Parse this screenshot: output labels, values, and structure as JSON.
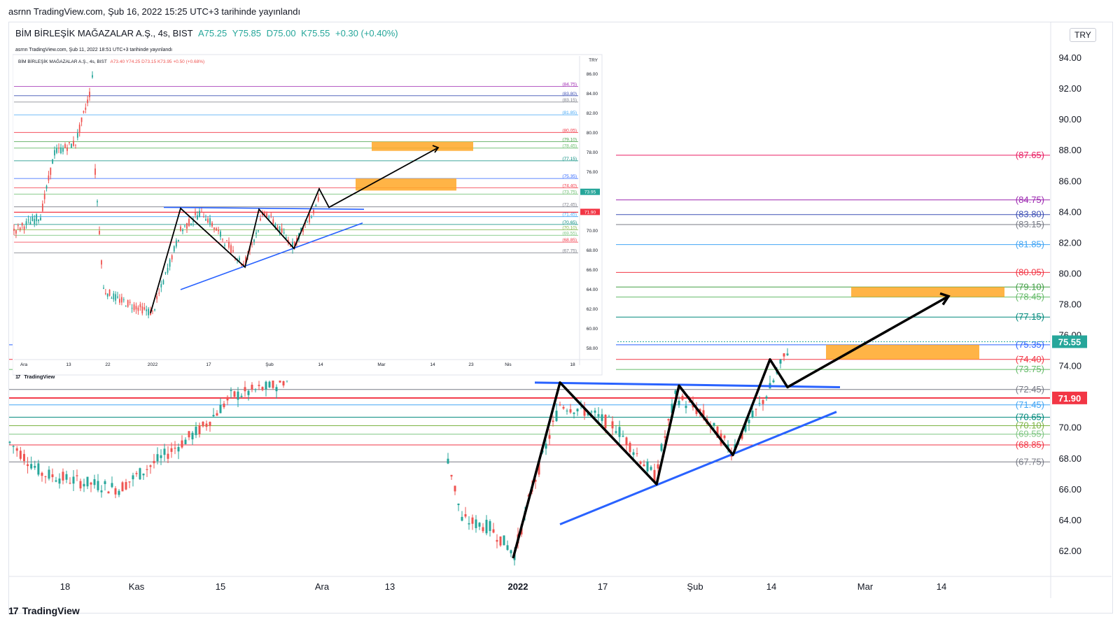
{
  "published": "asrnn TradingView.com, Şub 16, 2022 15:25 UTC+3 tarihinde yayınlandı",
  "legend": {
    "symbol": "BİM BİRLEŞİK MAĞAZALAR A.Ş., 4s, BIST",
    "open": "A75.25",
    "high": "Y75.85",
    "low": "D75.00",
    "close": "K75.55",
    "change": "+0.30 (+0.40%)"
  },
  "currency": "TRY",
  "footer_logo": "TradingView",
  "colors": {
    "up": "#26a69a",
    "down": "#ef5350",
    "trend": "#2962ff",
    "zone": "#ffa726",
    "pattern": "#000000"
  },
  "chart_data": [
    {
      "type": "candlestick",
      "name": "main",
      "x_ticks": [
        "18",
        "Kas",
        "15",
        "Ara",
        "13",
        "2022",
        "17",
        "Şub",
        "14",
        "Mar",
        "14"
      ],
      "y_ticks": [
        62,
        64,
        66,
        68,
        70,
        72,
        74,
        76,
        78,
        80,
        82,
        84,
        86,
        88,
        90,
        92,
        94
      ],
      "ylim": [
        60.5,
        95
      ],
      "y_tick_labels": [
        "62.00",
        "64.00",
        "66.00",
        "68.00",
        "70.00",
        "72.00",
        "74.00",
        "76.00",
        "78.00",
        "80.00",
        "82.00",
        "84.00",
        "86.00",
        "88.00",
        "90.00",
        "92.00",
        "94.00"
      ],
      "last_price": 75.55,
      "last_price_label": "75.55",
      "marker_price": 71.9,
      "marker_price_label": "71.90",
      "levels": [
        {
          "value": 87.65,
          "label": "(87.65)",
          "color": "#e91e63"
        },
        {
          "value": 84.75,
          "label": "(84.75)",
          "color": "#9c27b0"
        },
        {
          "value": 83.8,
          "label": "(83.80)",
          "color": "#3f51b5"
        },
        {
          "value": 83.15,
          "label": "(83.15)",
          "color": "#787b86"
        },
        {
          "value": 81.85,
          "label": "(81.85)",
          "color": "#42a5f5"
        },
        {
          "value": 80.05,
          "label": "(80.05)",
          "color": "#f23645"
        },
        {
          "value": 79.1,
          "label": "(79.10)",
          "color": "#43a047"
        },
        {
          "value": 78.45,
          "label": "(78.45)",
          "color": "#66bb6a"
        },
        {
          "value": 77.15,
          "label": "(77.15)",
          "color": "#00897b"
        },
        {
          "value": 75.35,
          "label": "(75.35)",
          "color": "#2962ff"
        },
        {
          "value": 74.4,
          "label": "(74.40)",
          "color": "#f23645"
        },
        {
          "value": 73.75,
          "label": "(73.75)",
          "color": "#66bb6a"
        },
        {
          "value": 72.45,
          "label": "(72.45)",
          "color": "#787b86"
        },
        {
          "value": 71.45,
          "label": "(71.45)",
          "color": "#42a5f5"
        },
        {
          "value": 70.65,
          "label": "(70.65)",
          "color": "#00897b"
        },
        {
          "value": 70.1,
          "label": "(70.10)",
          "color": "#7cb342"
        },
        {
          "value": 69.55,
          "label": "(69.55)",
          "color": "#81c784"
        },
        {
          "value": 68.85,
          "label": "(68.85)",
          "color": "#f23645"
        },
        {
          "value": 67.75,
          "label": "(67.75)",
          "color": "#787b86"
        }
      ],
      "zones": [
        [
          78.45,
          79.1
        ],
        [
          74.4,
          75.35
        ]
      ],
      "path": [
        61.5,
        72.9,
        66.3,
        72.7,
        68.2,
        74.4,
        72.6,
        78.5
      ],
      "upper_trend": [
        72.9,
        72.6
      ],
      "lower_trend": [
        63.7,
        71.0
      ]
    },
    {
      "type": "candlestick",
      "name": "inset",
      "published": "asrnn TradingView.com, Şub 11, 2022 18:51 UTC+3 tarihinde yayınlandı",
      "legend_symbol": "BİM BİRLEŞİK MAĞAZALAR A.Ş., 4s, BIST",
      "legend_values": "A73.40  Y74.25  D73.15  K73.95  +0.50 (+0.68%)",
      "currency": "TRY",
      "x_ticks": [
        "Ara",
        "13",
        "22",
        "2022",
        "17",
        "Şub",
        "14",
        "Mar",
        "14",
        "23",
        "Nis",
        "18"
      ],
      "y_ticks": [
        58,
        60,
        62,
        64,
        66,
        68,
        70,
        72,
        74,
        76,
        78,
        80,
        82,
        84,
        86
      ],
      "y_tick_labels": [
        "58.00",
        "60.00",
        "62.00",
        "64.00",
        "66.00",
        "68.00",
        "70.00",
        "72.00",
        "74.00",
        "76.00",
        "78.00",
        "80.00",
        "82.00",
        "84.00",
        "86.00"
      ],
      "ylim": [
        57,
        87
      ],
      "last_price": 73.95,
      "last_price_label": "73.95",
      "marker_price": 71.9,
      "marker_price_label": "71.90",
      "levels": [
        {
          "value": 84.75,
          "label": "(84.75)",
          "color": "#9c27b0"
        },
        {
          "value": 83.8,
          "label": "(83.80)",
          "color": "#3f51b5"
        },
        {
          "value": 83.15,
          "label": "(83.15)",
          "color": "#787b86"
        },
        {
          "value": 81.85,
          "label": "(81.85)",
          "color": "#42a5f5"
        },
        {
          "value": 80.05,
          "label": "(80.05)",
          "color": "#f23645"
        },
        {
          "value": 79.1,
          "label": "(79.10)",
          "color": "#43a047"
        },
        {
          "value": 78.45,
          "label": "(78.45)",
          "color": "#66bb6a"
        },
        {
          "value": 77.15,
          "label": "(77.15)",
          "color": "#00897b"
        },
        {
          "value": 75.35,
          "label": "(75.35)",
          "color": "#2962ff"
        },
        {
          "value": 74.4,
          "label": "(74.40)",
          "color": "#f23645"
        },
        {
          "value": 73.75,
          "label": "(73.75)",
          "color": "#66bb6a"
        },
        {
          "value": 72.45,
          "label": "(72.45)",
          "color": "#787b86"
        },
        {
          "value": 71.45,
          "label": "(71.45)",
          "color": "#42a5f5"
        },
        {
          "value": 70.65,
          "label": "(70.65)",
          "color": "#00897b"
        },
        {
          "value": 70.1,
          "label": "(70.10)",
          "color": "#7cb342"
        },
        {
          "value": 69.55,
          "label": "(69.55)",
          "color": "#81c784"
        },
        {
          "value": 68.85,
          "label": "(68.85)",
          "color": "#f23645"
        },
        {
          "value": 67.75,
          "label": "(67.75)",
          "color": "#787b86"
        }
      ],
      "zones": [
        [
          78.45,
          79.1
        ],
        [
          74.4,
          75.35
        ]
      ],
      "path": [
        61.6,
        72.3,
        66.3,
        72.2,
        68.2,
        74.3,
        72.4,
        78.5
      ]
    }
  ],
  "inset_logo": "TradingView"
}
